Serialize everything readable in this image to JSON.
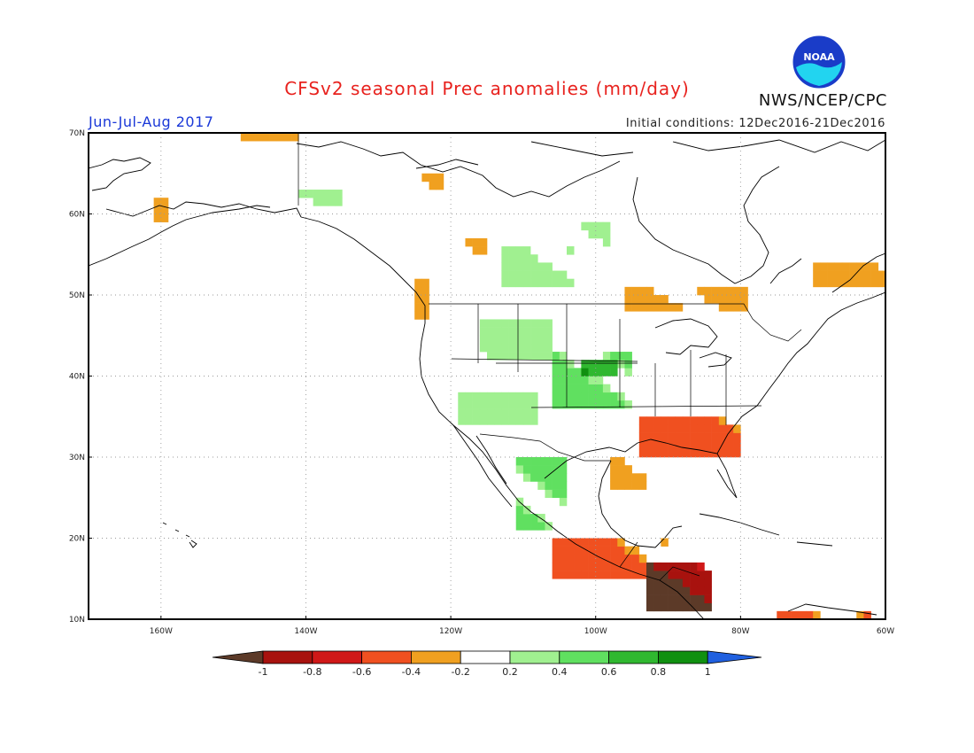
{
  "header": {
    "title": "CFSv2 seasonal Prec anomalies (mm/day)",
    "period": "Jun-Jul-Aug 2017",
    "initial_conditions": "Initial conditions: 12Dec2016-21Dec2016",
    "agency": "NWS/NCEP/CPC",
    "logo_text": "NOAA"
  },
  "map": {
    "lat_labels": [
      "70N",
      "60N",
      "50N",
      "40N",
      "30N",
      "20N",
      "10N"
    ],
    "lon_labels": [
      "160W",
      "140W",
      "120W",
      "100W",
      "80W",
      "60W"
    ],
    "extent": {
      "lon_min": -170,
      "lon_max": -60,
      "lat_min": 10,
      "lat_max": 70
    }
  },
  "legend": {
    "labels": [
      "-1",
      "-0.8",
      "-0.6",
      "-0.4",
      "-0.2",
      "0.2",
      "0.4",
      "0.6",
      "0.8",
      "1"
    ],
    "colors": [
      "#5c3a28",
      "#a8120e",
      "#d01818",
      "#f05020",
      "#f0a020",
      "#ffffff",
      "#a0f090",
      "#60e060",
      "#30b830",
      "#109010",
      "#2060e0"
    ]
  },
  "anomaly_regions": [
    {
      "name": "alaska-north-slope",
      "lon": [
        -149,
        -141
      ],
      "lat": [
        69,
        70
      ],
      "value": -0.3
    },
    {
      "name": "western-alaska",
      "lon": [
        -161,
        -159
      ],
      "lat": [
        59,
        62
      ],
      "value": -0.3
    },
    {
      "name": "alaska-interior",
      "lon": [
        -143,
        -135
      ],
      "lat": [
        61,
        63
      ],
      "value": 0.3
    },
    {
      "name": "pacific-northwest-coast",
      "lon": [
        -125,
        -123
      ],
      "lat": [
        47,
        52
      ],
      "value": -0.3
    },
    {
      "name": "british-columbia",
      "lon": [
        -119,
        -115
      ],
      "lat": [
        53,
        57
      ],
      "value": -0.3
    },
    {
      "name": "yukon",
      "lon": [
        -124,
        -121
      ],
      "lat": [
        63,
        65
      ],
      "value": -0.3
    },
    {
      "name": "canadian-prairies",
      "lon": [
        -113,
        -103
      ],
      "lat": [
        51,
        56
      ],
      "value": 0.3
    },
    {
      "name": "manitoba",
      "lon": [
        -104,
        -98
      ],
      "lat": [
        55,
        59
      ],
      "value": 0.3
    },
    {
      "name": "great-plains",
      "lon": [
        -106,
        -95
      ],
      "lat": [
        36,
        43
      ],
      "value": 0.4
    },
    {
      "name": "central-plains-core",
      "lon": [
        -102,
        -97
      ],
      "lat": [
        40,
        42
      ],
      "value": 0.6
    },
    {
      "name": "northern-rockies",
      "lon": [
        -116,
        -106
      ],
      "lat": [
        42,
        47
      ],
      "value": 0.3
    },
    {
      "name": "southwest",
      "lon": [
        -119,
        -108
      ],
      "lat": [
        34,
        38
      ],
      "value": 0.3
    },
    {
      "name": "ontario-quebec",
      "lon": [
        -96,
        -79
      ],
      "lat": [
        48,
        51
      ],
      "value": -0.3
    },
    {
      "name": "labrador",
      "lon": [
        -70,
        -60
      ],
      "lat": [
        51,
        54
      ],
      "value": -0.3
    },
    {
      "name": "southeast-us",
      "lon": [
        -94,
        -80
      ],
      "lat": [
        30,
        35
      ],
      "value": -0.4
    },
    {
      "name": "gulf-coast",
      "lon": [
        -98,
        -93
      ],
      "lat": [
        26,
        31
      ],
      "value": -0.3
    },
    {
      "name": "sierra-madre",
      "lon": [
        -111,
        -104
      ],
      "lat": [
        21,
        30
      ],
      "value": 0.4
    },
    {
      "name": "southern-mexico",
      "lon": [
        -106,
        -90
      ],
      "lat": [
        15,
        20
      ],
      "value": -0.4
    },
    {
      "name": "central-america",
      "lon": [
        -93,
        -84
      ],
      "lat": [
        11,
        17
      ],
      "value": -0.8
    },
    {
      "name": "northern-south-america",
      "lon": [
        -75,
        -62
      ],
      "lat": [
        10,
        11
      ],
      "value": -0.4
    }
  ]
}
